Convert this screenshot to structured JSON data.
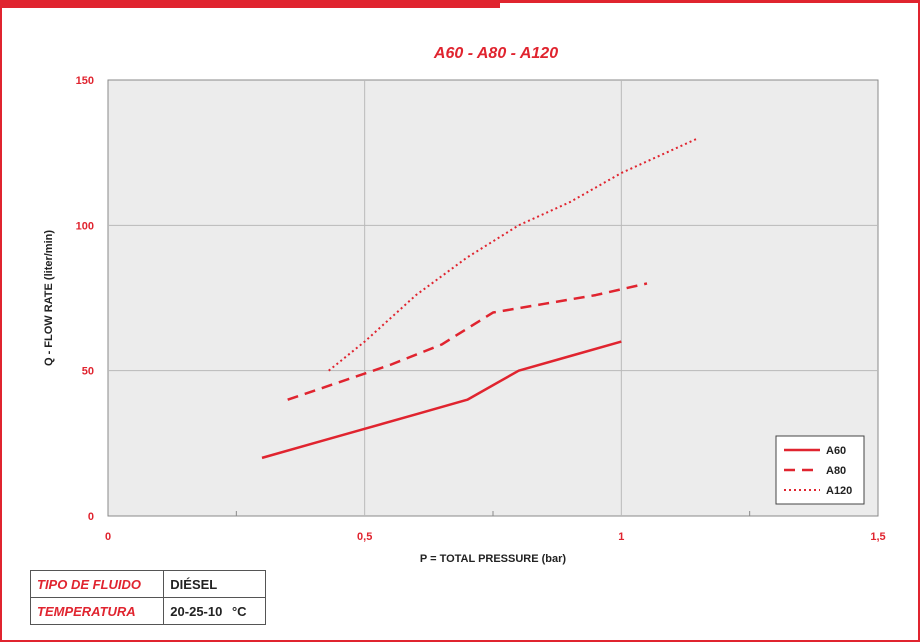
{
  "colors": {
    "accent": "#e0242f",
    "plot_bg": "#ececec",
    "grid": "#b9b9b9",
    "text": "#222222"
  },
  "chart_data": {
    "type": "line",
    "title": "A60 - A80 - A120",
    "xlabel": "P = TOTAL PRESSURE (bar)",
    "ylabel": "Q - FLOW RATE (liter/min)",
    "xlim": [
      0,
      1.5
    ],
    "ylim": [
      0,
      150
    ],
    "xticks": [
      0,
      0.5,
      1,
      1.5
    ],
    "xtick_labels": [
      "0",
      "0,5",
      "1",
      "1,5"
    ],
    "yticks": [
      0,
      50,
      100,
      150
    ],
    "ytick_labels": [
      "0",
      "50",
      "100",
      "150"
    ],
    "grid": true,
    "legend_position": "bottom-right",
    "series": [
      {
        "name": "A60",
        "style": "solid",
        "x": [
          0.3,
          0.4,
          0.5,
          0.6,
          0.7,
          0.8,
          0.9,
          1.0
        ],
        "y": [
          20,
          25,
          30,
          35,
          40,
          50,
          55,
          60
        ]
      },
      {
        "name": "A80",
        "style": "dashed",
        "x": [
          0.35,
          0.45,
          0.55,
          0.65,
          0.75,
          0.85,
          0.95,
          1.05
        ],
        "y": [
          40,
          46,
          52,
          59,
          70,
          73,
          76,
          80
        ]
      },
      {
        "name": "A120",
        "style": "dotted",
        "x": [
          0.43,
          0.5,
          0.6,
          0.7,
          0.8,
          0.9,
          1.0,
          1.1,
          1.15
        ],
        "y": [
          50,
          60,
          76,
          89,
          100,
          108,
          118,
          126,
          130
        ]
      }
    ]
  },
  "info": {
    "fluid_label": "TIPO DE FLUIDO",
    "fluid_value": "DIÉSEL",
    "temp_label": "TEMPERATURA",
    "temp_value": "20-25-10",
    "temp_unit": "°C"
  }
}
